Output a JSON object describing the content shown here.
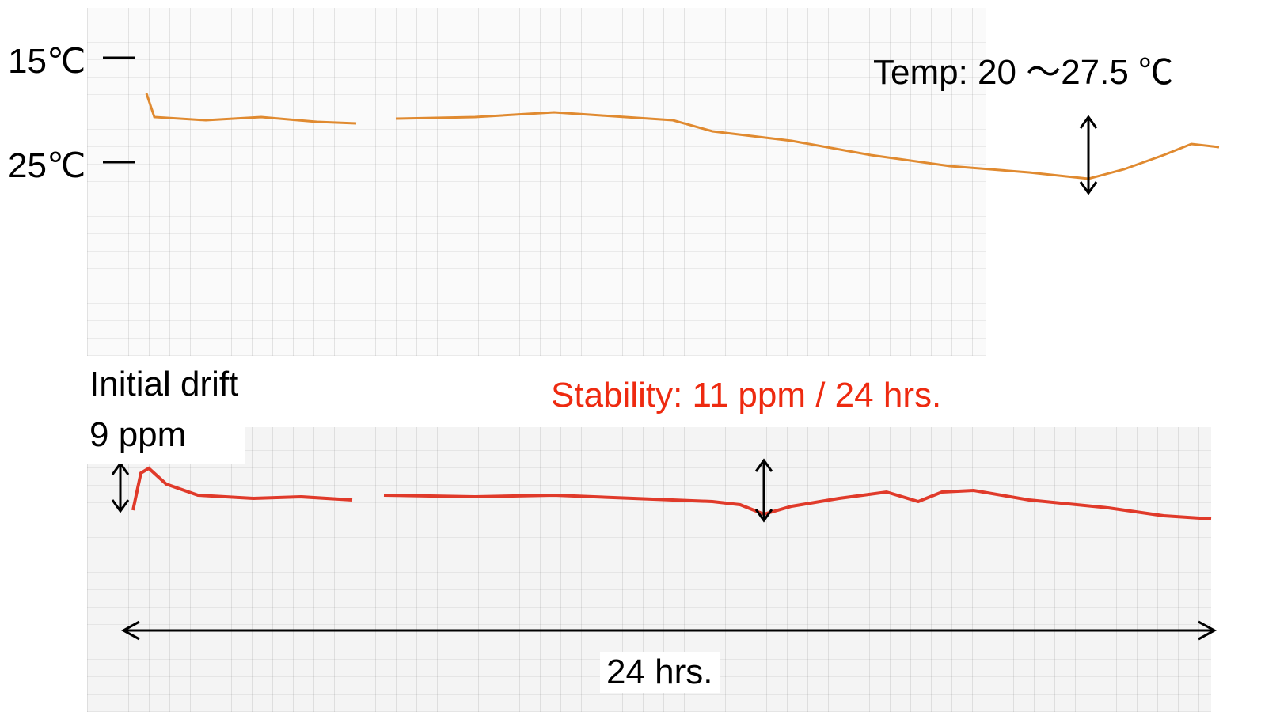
{
  "annotations": {
    "temp_high": "15℃",
    "temp_low": "25℃",
    "temp_range": "Temp: 20 ～27.5 ℃",
    "initial_drift_title": "Initial drift",
    "initial_drift_value": "9 ppm",
    "stability": "Stability: 11 ppm / 24 hrs.",
    "duration": "24 hrs."
  }
}
